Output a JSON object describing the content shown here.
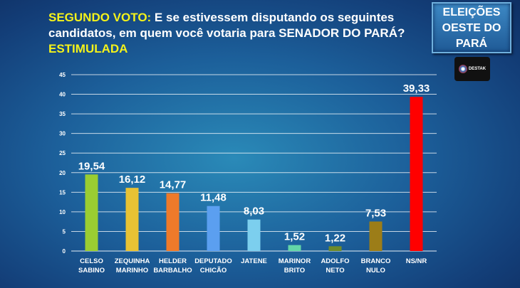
{
  "header": {
    "prefix": "SEGUNDO VOTO:",
    "question": " E se estivessem disputando os seguintes candidatos, em quem você votaria para SENADOR DO PARÁ? ",
    "suffix": "ESTIMULADA"
  },
  "badge": {
    "lines": [
      "ELEIÇÕES",
      "OESTE DO",
      "PARÁ"
    ]
  },
  "logo": {
    "text": "DESTAK"
  },
  "chart_data": {
    "type": "bar",
    "title": "SEGUNDO VOTO: E se estivessem disputando os seguintes candidatos, em quem você votaria para SENADOR DO PARÁ? ESTIMULADA",
    "categories": [
      [
        "CELSO",
        "SABINO"
      ],
      [
        "ZEQUINHA",
        "MARINHO"
      ],
      [
        "HELDER",
        "BARBALHO"
      ],
      [
        "DEPUTADO",
        "CHICÃO"
      ],
      [
        "JATENE",
        ""
      ],
      [
        "MARINOR",
        "BRITO"
      ],
      [
        "ADOLFO",
        "NETO"
      ],
      [
        "BRANCO",
        "NULO"
      ],
      [
        "NS/NR",
        ""
      ]
    ],
    "values": [
      19.54,
      16.12,
      14.77,
      11.48,
      8.03,
      1.52,
      1.22,
      7.53,
      39.33
    ],
    "labels": [
      "19,54",
      "16,12",
      "14,77",
      "11,48",
      "8,03",
      "1,52",
      "1,22",
      "7,53",
      "39,33"
    ],
    "colors": [
      "#9acd32",
      "#e8c234",
      "#ee7a2a",
      "#5b9ff0",
      "#7ccfee",
      "#63d6a8",
      "#6e8a2a",
      "#9c7d18",
      "#ff0000"
    ],
    "yticks": [
      0,
      5,
      10,
      15,
      20,
      25,
      30,
      35,
      40,
      45
    ],
    "ylim": [
      0,
      45
    ],
    "grid": true,
    "xlabel": "",
    "ylabel": ""
  }
}
